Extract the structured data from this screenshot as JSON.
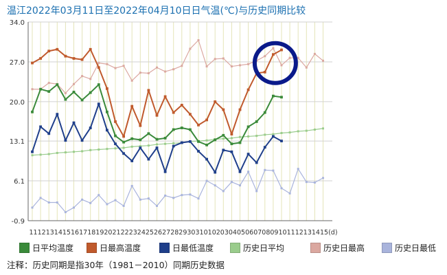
{
  "title": "温江2022年03月11日至2022年04月10日日气温(℃)与历史同期比较",
  "footnote": "注释：历史同期是指30年（1981－2010）同期历史数据",
  "chart_data": {
    "type": "line",
    "x_tick_labels": [
      "11",
      "12",
      "13",
      "14",
      "15",
      "16",
      "17",
      "18",
      "19",
      "20",
      "21",
      "22",
      "23",
      "24",
      "25",
      "26",
      "27",
      "28",
      "29",
      "30",
      "31",
      "01",
      "02",
      "03",
      "04",
      "05",
      "06",
      "07",
      "08",
      "09",
      "10",
      "11",
      "12",
      "13",
      "14",
      "15(d)"
    ],
    "y_ticks": [
      34.0,
      27.0,
      20.0,
      13.1,
      6.1,
      -0.9
    ],
    "y_tick_labels": [
      "34.0",
      "27.0",
      "20.0",
      "13.1",
      "6.1",
      "-0.9"
    ],
    "ylim": [
      -0.9,
      34.0
    ],
    "grid": true,
    "series": [
      {
        "name": "日平均温度",
        "color": "#3a8a3a",
        "values": [
          18.2,
          22.2,
          21.8,
          23.0,
          20.4,
          21.7,
          20.3,
          21.6,
          23.0,
          18.2,
          14.0,
          12.9,
          13.5,
          13.3,
          14.4,
          13.4,
          13.6,
          15.1,
          15.4,
          15.1,
          13.0,
          12.4,
          13.3,
          14.1,
          12.6,
          12.8,
          15.6,
          16.5,
          18.1,
          21.0,
          20.8
        ]
      },
      {
        "name": "日最高温度",
        "color": "#c05a2c",
        "values": [
          26.8,
          27.6,
          28.9,
          29.2,
          28.0,
          27.6,
          27.4,
          29.2,
          26.0,
          22.3,
          16.5,
          13.9,
          19.2,
          15.8,
          22.0,
          17.6,
          20.9,
          18.1,
          19.4,
          17.8,
          15.9,
          16.8,
          20.0,
          18.6,
          14.3,
          18.6,
          22.1,
          25.0,
          25.2,
          28.3,
          29.1
        ]
      },
      {
        "name": "日最低温度",
        "color": "#1f3f8a",
        "values": [
          11.2,
          15.6,
          14.4,
          17.8,
          13.2,
          16.3,
          13.2,
          15.4,
          19.6,
          15.0,
          12.6,
          10.9,
          9.6,
          11.9,
          9.9,
          11.9,
          7.7,
          12.2,
          12.8,
          13.0,
          11.3,
          9.9,
          7.6,
          11.5,
          11.2,
          7.7,
          10.8,
          9.3,
          12.0,
          13.9,
          13.1
        ]
      },
      {
        "name": "历史日平均",
        "color": "#9acc8c",
        "values": [
          10.6,
          10.7,
          10.8,
          11.0,
          11.1,
          11.2,
          11.3,
          11.5,
          11.6,
          11.7,
          11.8,
          11.9,
          12.1,
          12.2,
          12.3,
          12.5,
          12.6,
          12.7,
          12.8,
          13.0,
          13.1,
          13.2,
          13.4,
          13.5,
          13.6,
          13.8,
          13.9,
          14.0,
          14.2,
          14.3,
          14.5,
          14.6,
          14.8,
          14.9,
          15.1,
          15.3
        ]
      },
      {
        "name": "历史日最高",
        "color": "#dba8a0",
        "values": [
          22.2,
          22.2,
          23.3,
          23.1,
          21.5,
          23.1,
          24.5,
          24.0,
          26.8,
          26.6,
          25.9,
          26.3,
          23.7,
          25.1,
          25.0,
          26.0,
          25.3,
          25.7,
          26.3,
          29.3,
          30.8,
          26.2,
          27.5,
          27.6,
          26.2,
          26.4,
          26.6,
          27.2,
          28.0,
          29.4,
          26.4,
          27.7,
          27.7,
          26.0,
          28.4,
          27.2
        ]
      },
      {
        "name": "历史日最低",
        "color": "#a9b4dc",
        "values": [
          1.4,
          3.1,
          2.3,
          2.3,
          0.6,
          1.4,
          2.8,
          2.2,
          3.6,
          2.0,
          2.7,
          1.7,
          5.2,
          2.8,
          3.0,
          1.7,
          3.5,
          3.1,
          3.6,
          3.7,
          3.0,
          6.1,
          5.3,
          4.3,
          5.9,
          5.3,
          7.7,
          4.3,
          8.0,
          7.9,
          4.8,
          3.9,
          8.2,
          5.9,
          5.8,
          6.6
        ]
      }
    ]
  },
  "legend": [
    {
      "label": "日平均温度",
      "color": "#3a8a3a"
    },
    {
      "label": "日最高温度",
      "color": "#c05a2c"
    },
    {
      "label": "日最低温度",
      "color": "#1f3f8a"
    },
    {
      "label": "历史日平均",
      "color": "#9acc8c"
    },
    {
      "label": "历史日最高",
      "color": "#dba8a0"
    },
    {
      "label": "历史日最低",
      "color": "#a9b4dc"
    }
  ],
  "annotation": {
    "shape": "ellipse",
    "color": "#0a1a8a"
  }
}
